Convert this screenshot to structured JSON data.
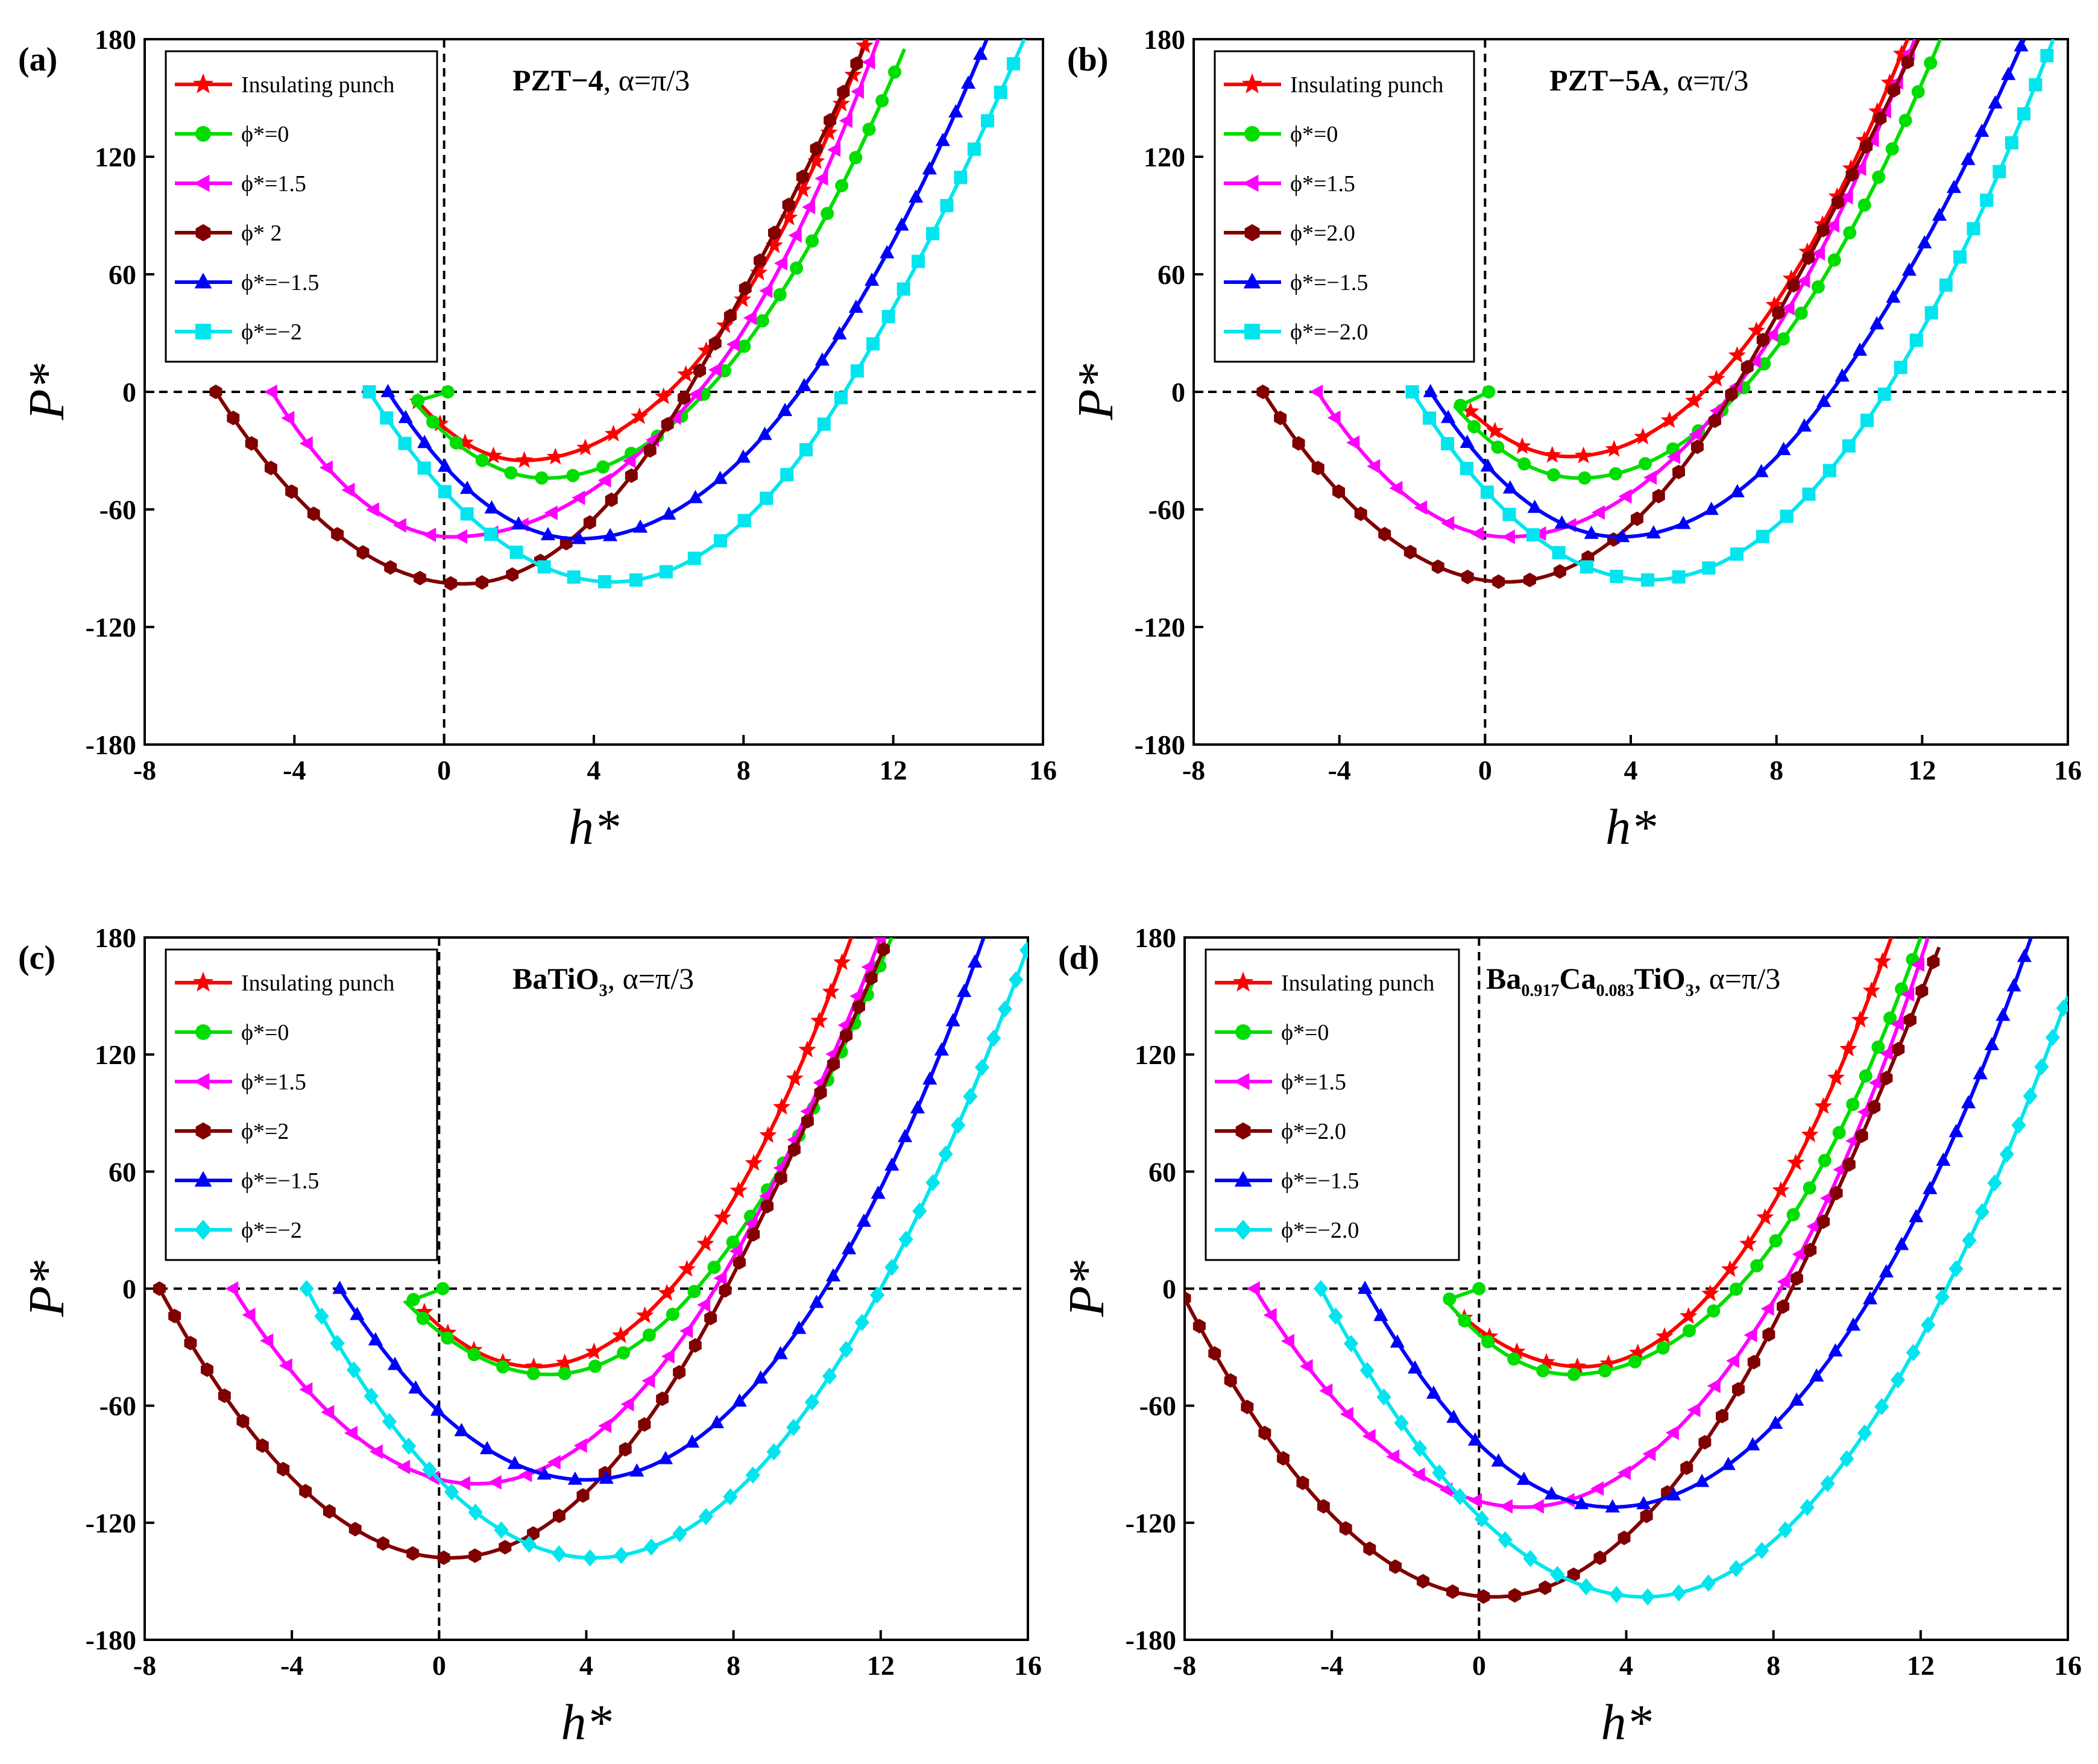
{
  "figure": {
    "x_label": "h*",
    "y_label": "P*",
    "panels": [
      {
        "label": "(a)",
        "title_main": "PZT−4",
        "title_sub": "",
        "title_rest": "",
        "title_alpha": ", α=π/3",
        "legend": [
          "Insulating punch",
          "ϕ*=0",
          "ϕ*=1.5",
          "ϕ* 2",
          "ϕ*=−1.5",
          "ϕ*=−2"
        ]
      },
      {
        "label": "(b)",
        "title_main": "PZT−5A",
        "title_sub": "",
        "title_rest": "",
        "title_alpha": ", α=π/3",
        "legend": [
          "Insulating punch",
          "ϕ*=0",
          "ϕ*=1.5",
          "ϕ*=2.0",
          "ϕ*=−1.5",
          "ϕ*=−2.0"
        ]
      },
      {
        "label": "(c)",
        "title_main": "BaTiO",
        "title_sub": "3",
        "title_rest": "",
        "title_alpha": ", α=π/3",
        "legend": [
          "Insulating punch",
          "ϕ*=0",
          "ϕ*=1.5",
          "ϕ*=2",
          "ϕ*=−1.5",
          "ϕ*=−2"
        ]
      },
      {
        "label": "(d)",
        "title_main": "Ba",
        "title_sub": "0.917",
        "title_rest": "Ca",
        "title_sub2": "0.083",
        "title_rest2": "TiO",
        "title_sub3": "3",
        "title_alpha": ", α=π/3",
        "legend": [
          "Insulating punch",
          "ϕ*=0",
          "ϕ*=1.5",
          "ϕ*=2.0",
          "ϕ*=−1.5",
          "ϕ*=−2.0"
        ]
      }
    ]
  },
  "chart_data": [
    {
      "type": "line",
      "panel": "(a)",
      "xlabel": "h*",
      "ylabel": "P*",
      "xlim": [
        -8,
        16
      ],
      "ylim": [
        -180,
        180
      ],
      "xticks": [
        -8,
        -4,
        0,
        4,
        8,
        12,
        16
      ],
      "yticks": [
        -180,
        -120,
        -60,
        0,
        60,
        120,
        180
      ],
      "reference_lines": {
        "x": 0,
        "y": 0
      },
      "series": [
        {
          "name": "Insulating punch",
          "color": "#ff0000",
          "marker": "star",
          "start": [
            -0.7,
            -5
          ],
          "min": [
            2.1,
            -35
          ],
          "zero": [
            6.0,
            0
          ],
          "end": [
            11.3,
            180
          ]
        },
        {
          "name": "ϕ*=0",
          "color": "#00dd00",
          "marker": "circle",
          "start": [
            -0.8,
            -5
          ],
          "start2": [
            0.1,
            0
          ],
          "min": [
            2.7,
            -44
          ],
          "zero": [
            7.0,
            0
          ],
          "end": [
            12.3,
            175
          ]
        },
        {
          "name": "ϕ*=1.5",
          "color": "#ff00ff",
          "marker": "triangle-left",
          "start": [
            -4.6,
            0
          ],
          "min": [
            0.2,
            -74
          ],
          "zero": [
            6.8,
            0
          ],
          "end": [
            11.6,
            180
          ]
        },
        {
          "name": "ϕ* 2",
          "color": "#800000",
          "marker": "hexagon",
          "start": [
            -6.1,
            0
          ],
          "min": [
            0.5,
            -98
          ],
          "zero": [
            6.5,
            0
          ],
          "end": [
            11.2,
            175
          ]
        },
        {
          "name": "ϕ*=−1.5",
          "color": "#0000ff",
          "marker": "triangle-up",
          "start": [
            -1.5,
            0
          ],
          "min": [
            3.6,
            -75
          ],
          "zero": [
            9.5,
            0
          ],
          "end": [
            14.5,
            180
          ]
        },
        {
          "name": "ϕ*=−2",
          "color": "#00e5ee",
          "marker": "square",
          "start": [
            -2.0,
            0
          ],
          "min": [
            4.5,
            -97
          ],
          "zero": [
            10.7,
            0
          ],
          "end": [
            15.5,
            180
          ]
        }
      ]
    },
    {
      "type": "line",
      "panel": "(b)",
      "xlabel": "h*",
      "ylabel": "P*",
      "xlim": [
        -8,
        16
      ],
      "ylim": [
        -180,
        180
      ],
      "xticks": [
        -8,
        -4,
        0,
        4,
        8,
        12,
        16
      ],
      "yticks": [
        -180,
        -120,
        -60,
        0,
        60,
        120,
        180
      ],
      "reference_lines": {
        "x": 0,
        "y": 0
      },
      "series": [
        {
          "name": "Insulating punch",
          "color": "#ff0000",
          "marker": "star",
          "start": [
            -0.4,
            -10
          ],
          "min": [
            2.3,
            -33
          ],
          "zero": [
            6.0,
            0
          ],
          "end": [
            11.6,
            180
          ]
        },
        {
          "name": "ϕ*=0",
          "color": "#00dd00",
          "marker": "circle",
          "start": [
            -0.8,
            -8
          ],
          "start2": [
            0.1,
            0
          ],
          "min": [
            2.6,
            -44
          ],
          "zero": [
            7.0,
            0
          ],
          "end": [
            12.5,
            180
          ]
        },
        {
          "name": "ϕ*=1.5",
          "color": "#ff00ff",
          "marker": "triangle-left",
          "start": [
            -4.6,
            0
          ],
          "min": [
            0.6,
            -74
          ],
          "zero": [
            6.8,
            0
          ],
          "end": [
            11.8,
            180
          ]
        },
        {
          "name": "ϕ*=2.0",
          "color": "#800000",
          "marker": "hexagon",
          "start": [
            -6.1,
            0
          ],
          "min": [
            0.6,
            -97
          ],
          "zero": [
            6.8,
            0
          ],
          "end": [
            11.9,
            180
          ]
        },
        {
          "name": "ϕ*=−1.5",
          "color": "#0000ff",
          "marker": "triangle-up",
          "start": [
            -1.5,
            0
          ],
          "min": [
            3.7,
            -74
          ],
          "zero": [
            9.5,
            0
          ],
          "end": [
            14.8,
            180
          ]
        },
        {
          "name": "ϕ*=−2.0",
          "color": "#00e5ee",
          "marker": "square",
          "start": [
            -2.0,
            0
          ],
          "min": [
            4.5,
            -96
          ],
          "zero": [
            11.0,
            0
          ],
          "end": [
            15.6,
            180
          ]
        }
      ]
    },
    {
      "type": "line",
      "panel": "(c)",
      "xlabel": "h*",
      "ylabel": "P*",
      "xlim": [
        -8,
        16
      ],
      "ylim": [
        -180,
        180
      ],
      "xticks": [
        -8,
        -4,
        0,
        4,
        8,
        12,
        16
      ],
      "yticks": [
        -180,
        -120,
        -60,
        0,
        60,
        120,
        180
      ],
      "reference_lines": {
        "x": 0,
        "y": 0
      },
      "series": [
        {
          "name": "Insulating punch",
          "color": "#ff0000",
          "marker": "star",
          "start": [
            -0.4,
            -12
          ],
          "min": [
            2.6,
            -40
          ],
          "zero": [
            6.3,
            0
          ],
          "end": [
            11.2,
            180
          ]
        },
        {
          "name": "ϕ*=0",
          "color": "#00dd00",
          "marker": "circle",
          "start": [
            -0.9,
            -7
          ],
          "start2": [
            0.1,
            0
          ],
          "min": [
            3.0,
            -44
          ],
          "zero": [
            7.0,
            0
          ],
          "end": [
            12.3,
            180
          ]
        },
        {
          "name": "ϕ*=1.5",
          "color": "#ff00ff",
          "marker": "triangle-left",
          "start": [
            -5.6,
            0
          ],
          "min": [
            1.0,
            -100
          ],
          "zero": [
            7.5,
            0
          ],
          "end": [
            12.0,
            180
          ]
        },
        {
          "name": "ϕ*=2",
          "color": "#800000",
          "marker": "hexagon",
          "start": [
            -7.6,
            0
          ],
          "min": [
            0.3,
            -138
          ],
          "zero": [
            7.8,
            0
          ],
          "end": [
            12.1,
            175
          ]
        },
        {
          "name": "ϕ*=−1.5",
          "color": "#0000ff",
          "marker": "triangle-up",
          "start": [
            -2.7,
            0
          ],
          "min": [
            4.0,
            -98
          ],
          "zero": [
            10.5,
            0
          ],
          "end": [
            14.8,
            180
          ]
        },
        {
          "name": "ϕ*=−2",
          "color": "#00e5ee",
          "marker": "diamond",
          "start": [
            -3.6,
            0
          ],
          "min": [
            4.2,
            -138
          ],
          "zero": [
            12.0,
            0
          ],
          "end": [
            16.0,
            175
          ]
        }
      ]
    },
    {
      "type": "line",
      "panel": "(d)",
      "xlabel": "h*",
      "ylabel": "P*",
      "xlim": [
        -8,
        16
      ],
      "ylim": [
        -180,
        180
      ],
      "xticks": [
        -8,
        -4,
        0,
        4,
        8,
        12,
        16
      ],
      "yticks": [
        -180,
        -120,
        -60,
        0,
        60,
        120,
        180
      ],
      "reference_lines": {
        "x": 0,
        "y": 0
      },
      "series": [
        {
          "name": "Insulating punch",
          "color": "#ff0000",
          "marker": "star",
          "start": [
            -0.4,
            -15
          ],
          "min": [
            2.8,
            -40
          ],
          "zero": [
            6.4,
            0
          ],
          "end": [
            11.2,
            180
          ]
        },
        {
          "name": "ϕ*=0",
          "color": "#00dd00",
          "marker": "circle",
          "start": [
            -0.9,
            -6
          ],
          "start2": [
            0.0,
            0
          ],
          "min": [
            2.5,
            -44
          ],
          "zero": [
            7.0,
            0
          ],
          "end": [
            12.0,
            180
          ]
        },
        {
          "name": "ϕ*=1.5",
          "color": "#ff00ff",
          "marker": "triangle-left",
          "start": [
            -6.1,
            0
          ],
          "min": [
            1.2,
            -112
          ],
          "zero": [
            8.2,
            0
          ],
          "end": [
            12.2,
            180
          ]
        },
        {
          "name": "ϕ*=2.0",
          "color": "#800000",
          "marker": "hexagon",
          "start": [
            -8.0,
            -5
          ],
          "min": [
            0.4,
            -158
          ],
          "zero": [
            8.5,
            0
          ],
          "end": [
            12.5,
            175
          ]
        },
        {
          "name": "ϕ*=−1.5",
          "color": "#0000ff",
          "marker": "triangle-up",
          "start": [
            -3.1,
            0
          ],
          "min": [
            3.6,
            -112
          ],
          "zero": [
            10.8,
            0
          ],
          "end": [
            15.0,
            180
          ]
        },
        {
          "name": "ϕ*=−2.0",
          "color": "#00e5ee",
          "marker": "diamond",
          "start": [
            -4.3,
            0
          ],
          "min": [
            4.5,
            -158
          ],
          "zero": [
            12.7,
            0
          ],
          "end": [
            16.0,
            150
          ]
        }
      ]
    }
  ]
}
